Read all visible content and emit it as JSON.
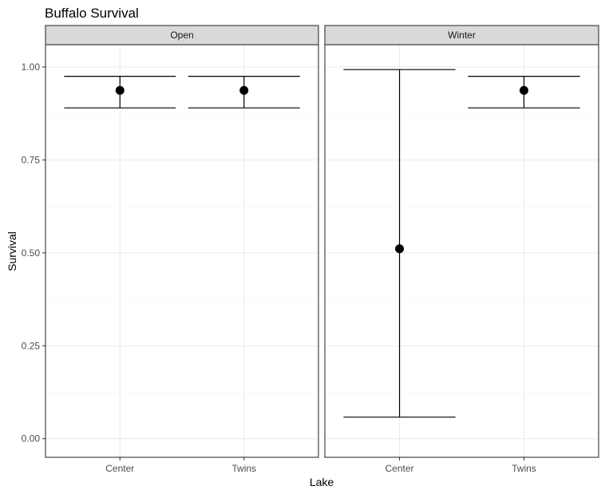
{
  "chart_data": {
    "type": "errorbar",
    "title": "Buffalo Survival",
    "xlabel": "Lake",
    "ylabel": "Survival",
    "ylim": [
      -0.05,
      1.06
    ],
    "y_ticks": [
      0.0,
      0.25,
      0.5,
      0.75,
      1.0
    ],
    "y_tick_labels": [
      "0.00",
      "0.25",
      "0.50",
      "0.75",
      "1.00"
    ],
    "categories": [
      "Center",
      "Twins"
    ],
    "grid": true,
    "facets": [
      {
        "strip": "Open",
        "points": [
          {
            "category": "Center",
            "estimate": 0.937,
            "lower": 0.89,
            "upper": 0.975
          },
          {
            "category": "Twins",
            "estimate": 0.937,
            "lower": 0.89,
            "upper": 0.975
          }
        ]
      },
      {
        "strip": "Winter",
        "points": [
          {
            "category": "Center",
            "estimate": 0.511,
            "lower": 0.058,
            "upper": 0.993
          },
          {
            "category": "Twins",
            "estimate": 0.937,
            "lower": 0.89,
            "upper": 0.975
          }
        ]
      }
    ],
    "colors": {
      "panel_border": "#333333",
      "strip_fill": "#d9d9d9",
      "grid_major": "#ebebeb",
      "grid_minor": "#f5f5f5",
      "marks": "#000000",
      "tick_text": "#4d4d4d"
    }
  }
}
